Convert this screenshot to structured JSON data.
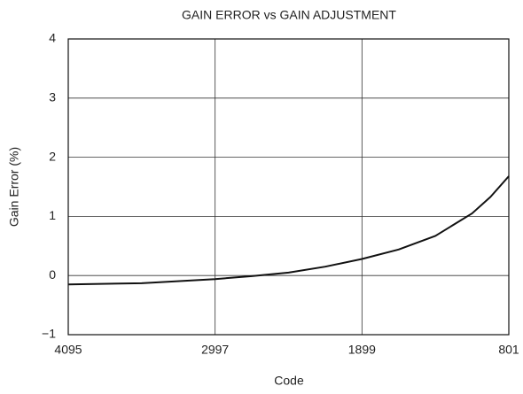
{
  "chart_data": {
    "type": "line",
    "title": "GAIN ERROR vs GAIN ADJUSTMENT",
    "xlabel": "Code",
    "ylabel": "Gain Error (%)",
    "x": [
      4095,
      3546,
      2997,
      2723,
      2448,
      2174,
      1899,
      1625,
      1350,
      1076,
      938,
      801
    ],
    "values": [
      -0.15,
      -0.13,
      -0.06,
      -0.01,
      0.05,
      0.15,
      0.28,
      0.44,
      0.67,
      1.05,
      1.33,
      1.68
    ],
    "color": "#111111",
    "xlim": [
      4095,
      801
    ],
    "xticks": [
      4095,
      2997,
      1899,
      801
    ],
    "ylim": [
      -1,
      4
    ],
    "yticks": [
      {
        "value": -1,
        "label": "−1"
      },
      0,
      1,
      2,
      3,
      4
    ],
    "grid": true
  }
}
